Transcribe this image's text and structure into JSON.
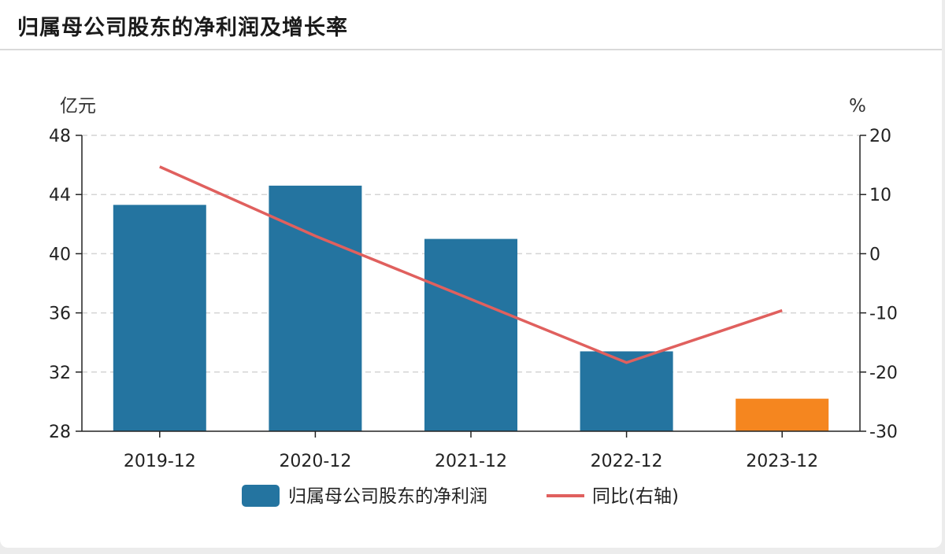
{
  "header": {
    "title": "归属母公司股东的净利润及增长率"
  },
  "chart_data": {
    "type": "bar",
    "categories": [
      "2019-12",
      "2020-12",
      "2021-12",
      "2022-12",
      "2023-12"
    ],
    "series": [
      {
        "name": "归属母公司股东的净利润",
        "kind": "bar",
        "axis": "left",
        "values": [
          43.3,
          44.6,
          41.0,
          33.4,
          30.2
        ],
        "colors": [
          "#2474a0",
          "#2474a0",
          "#2474a0",
          "#2474a0",
          "#f5861f"
        ]
      },
      {
        "name": "同比(右轴)",
        "kind": "line",
        "axis": "right",
        "values": [
          14.7,
          3.0,
          -7.7,
          -18.4,
          -9.6
        ],
        "color": "#e0605e"
      }
    ],
    "y_left": {
      "label": "亿元",
      "ylim": [
        28,
        48
      ],
      "ticks": [
        "28",
        "32",
        "36",
        "40",
        "44",
        "48"
      ]
    },
    "y_right": {
      "label": "%",
      "ylim": [
        -30,
        20
      ],
      "ticks": [
        "-30",
        "-20",
        "-10",
        "0",
        "10",
        "20"
      ]
    },
    "grid": true,
    "legend_position": "bottom-center",
    "legend": [
      {
        "label": "归属母公司股东的净利润",
        "swatch": "bar",
        "color": "#2474a0"
      },
      {
        "label": "同比(右轴)",
        "swatch": "line",
        "color": "#e0605e"
      }
    ]
  }
}
